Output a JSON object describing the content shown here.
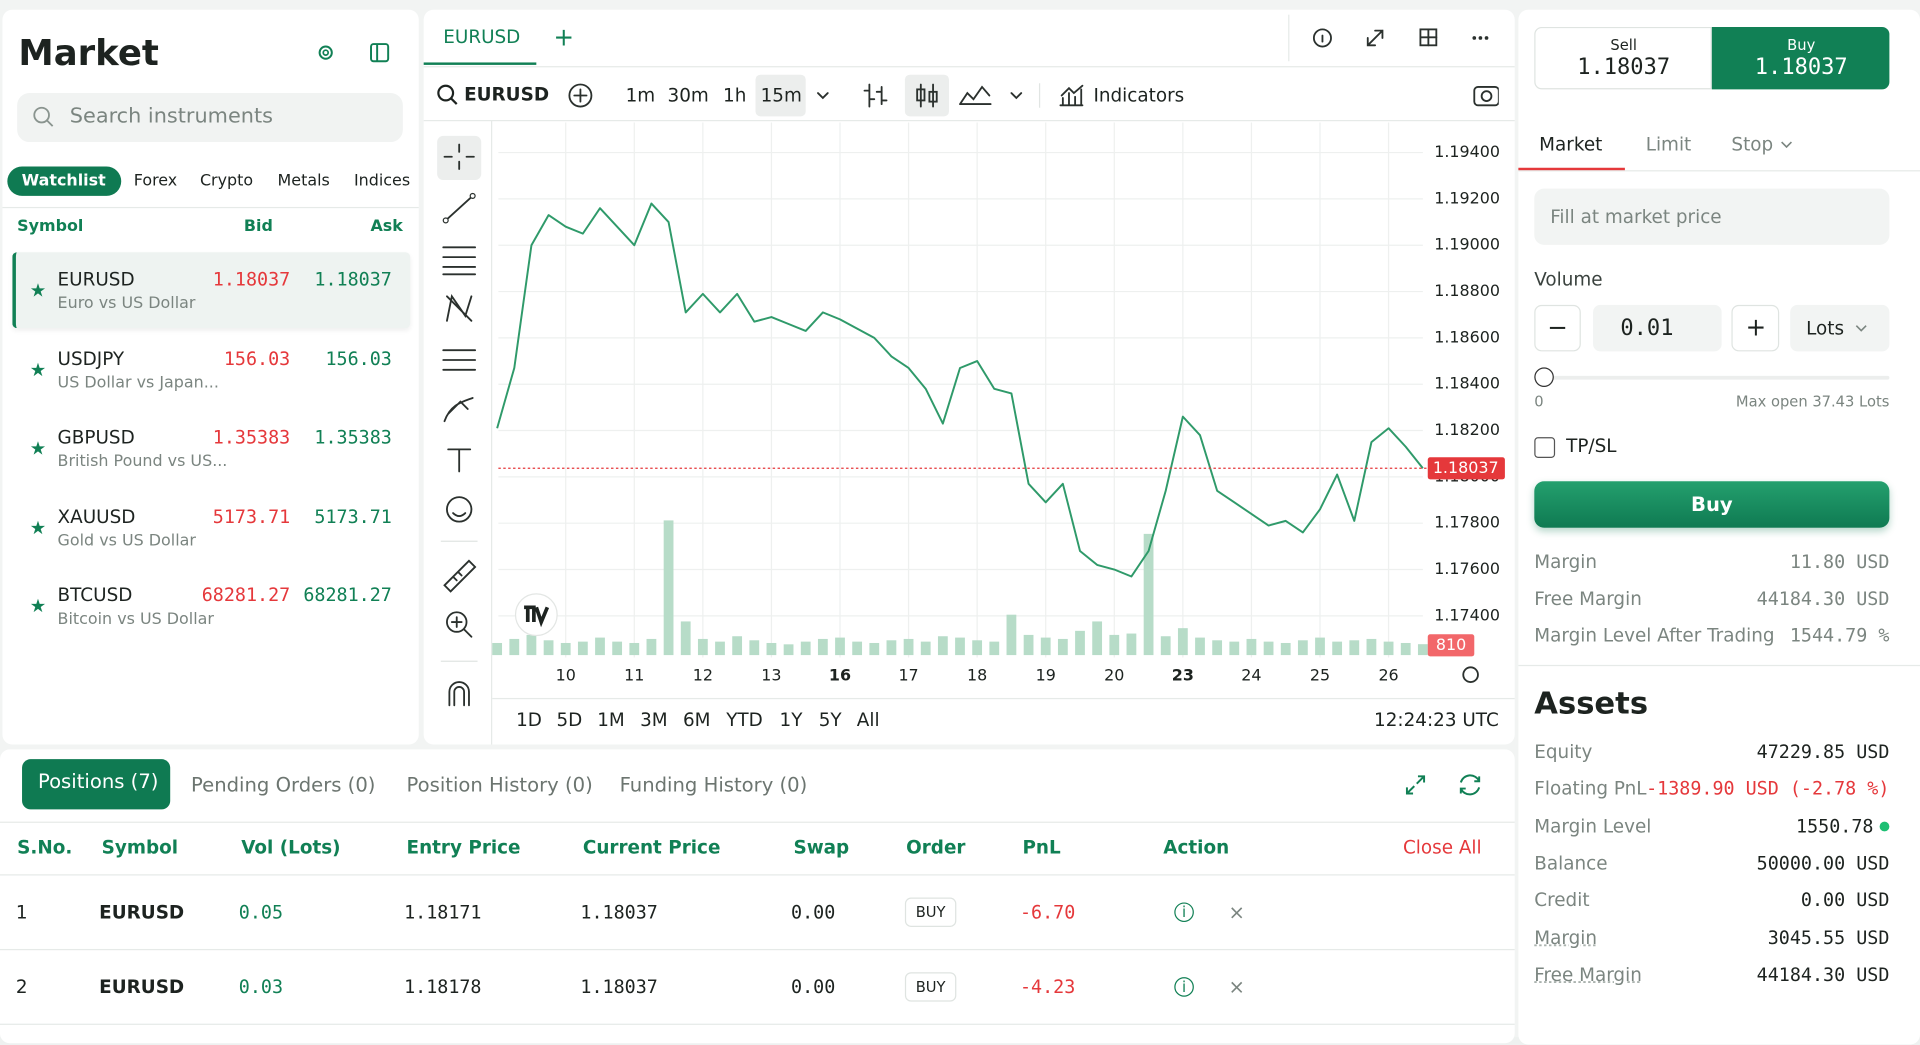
{
  "sidebar": {
    "title": "Market",
    "search_placeholder": "Search instruments",
    "tabs": [
      "Watchlist",
      "Forex",
      "Crypto",
      "Metals",
      "Indices"
    ],
    "columns": [
      "Symbol",
      "Bid",
      "Ask"
    ],
    "instruments": [
      {
        "symbol": "EURUSD",
        "description": "Euro vs US Dollar",
        "bid": "1.18037",
        "ask": "1.18037"
      },
      {
        "symbol": "USDJPY",
        "description": "US Dollar vs Japan...",
        "bid": "156.03",
        "ask": "156.03"
      },
      {
        "symbol": "GBPUSD",
        "description": "British Pound vs US...",
        "bid": "1.35383",
        "ask": "1.35383"
      },
      {
        "symbol": "XAUUSD",
        "description": "Gold vs US Dollar",
        "bid": "5173.71",
        "ask": "5173.71"
      },
      {
        "symbol": "BTCUSD",
        "description": "Bitcoin vs US Dollar",
        "bid": "68281.27",
        "ask": "68281.27"
      }
    ]
  },
  "chart_panel": {
    "tab": "EURUSD",
    "symbol": "EURUSD",
    "intervals": [
      "1m",
      "30m",
      "1h",
      "15m"
    ],
    "indicators": "Indicators",
    "ranges": [
      "1D",
      "5D",
      "1M",
      "3M",
      "6M",
      "YTD",
      "1Y",
      "5Y",
      "All"
    ],
    "time": "12:24:23 UTC"
  },
  "chart_data": {
    "type": "line",
    "color": "#2f9a6a",
    "volume_color": "#b7dcc8",
    "last_color": "#e5383b",
    "grid": true,
    "categories": [
      null,
      null,
      null,
      null,
      "10",
      null,
      null,
      null,
      "11",
      null,
      null,
      null,
      "12",
      null,
      null,
      null,
      "13",
      null,
      null,
      null,
      "16",
      null,
      null,
      null,
      "17",
      null,
      null,
      null,
      "18",
      null,
      null,
      null,
      "19",
      null,
      null,
      null,
      "20",
      null,
      null,
      null,
      "23",
      null,
      null,
      null,
      "24",
      null,
      null,
      null,
      "25",
      null,
      null,
      null,
      "26",
      null,
      null
    ],
    "values": [
      1.1821,
      1.1847,
      1.19,
      1.1913,
      1.1908,
      1.1905,
      1.1916,
      1.1908,
      1.19,
      1.1918,
      1.191,
      1.1871,
      1.1879,
      1.1871,
      1.1879,
      1.1867,
      1.1869,
      1.1866,
      1.1863,
      1.1871,
      1.1868,
      1.1864,
      1.186,
      1.1852,
      1.1847,
      1.1838,
      1.1823,
      1.1847,
      1.185,
      1.1838,
      1.1836,
      1.1797,
      1.1789,
      1.1797,
      1.1768,
      1.1762,
      1.176,
      1.1757,
      1.1768,
      1.1794,
      1.1826,
      1.1818,
      1.1794,
      1.1789,
      1.1784,
      1.1779,
      1.1781,
      1.1776,
      1.1786,
      1.1801,
      1.1781,
      1.1815,
      1.1821,
      1.1813,
      1.18037
    ],
    "volumes": [
      900,
      1200,
      1500,
      1100,
      900,
      1000,
      1300,
      1000,
      900,
      1200,
      10000,
      2500,
      1200,
      1000,
      1400,
      1100,
      900,
      800,
      1000,
      1200,
      1300,
      1000,
      900,
      1100,
      1200,
      1000,
      1400,
      1300,
      1100,
      1000,
      3000,
      1500,
      1300,
      1200,
      1800,
      2500,
      1500,
      1600,
      9000,
      1400,
      2000,
      1300,
      1100,
      1000,
      1200,
      1000,
      900,
      1100,
      1300,
      1000,
      1100,
      1200,
      1000,
      900,
      810
    ],
    "ylim": [
      1.1722,
      1.1953
    ],
    "yticks": [
      {
        "value": 1.194,
        "label": "1.19400"
      },
      {
        "value": 1.192,
        "label": "1.19200"
      },
      {
        "value": 1.19,
        "label": "1.19000"
      },
      {
        "value": 1.188,
        "label": "1.18800"
      },
      {
        "value": 1.186,
        "label": "1.18600"
      },
      {
        "value": 1.184,
        "label": "1.18400"
      },
      {
        "value": 1.182,
        "label": "1.18200"
      },
      {
        "value": 1.18,
        "label": "1.18000"
      },
      {
        "value": 1.178,
        "label": "1.17800"
      },
      {
        "value": 1.176,
        "label": "1.17600"
      },
      {
        "value": 1.174,
        "label": "1.17400"
      }
    ]
  },
  "order_panel": {
    "sell_label": "Sell",
    "sell_price": "1.18037",
    "buy_label": "Buy",
    "buy_price": "1.18037",
    "tabs": [
      "Market",
      "Limit",
      "Stop"
    ],
    "fill_note": "Fill at market price",
    "volume_label": "Volume",
    "volume_value": "0.01",
    "unit": "Lots",
    "slider_min": "0",
    "slider_max": "Max open 37.43 Lots",
    "tpsl": "TP/SL",
    "button": "Buy",
    "summary": [
      {
        "label": "Margin",
        "value": "11.80 USD"
      },
      {
        "label": "Free Margin",
        "value": "44184.30 USD"
      },
      {
        "label": "Margin Level After Trading",
        "value": "1544.79 %"
      }
    ]
  },
  "assets": {
    "title": "Assets",
    "rows": [
      {
        "label": "Equity",
        "value": "47229.85 USD"
      },
      {
        "label": "Floating PnL",
        "value": "-1389.90 USD (-2.78 %)"
      },
      {
        "label": "Margin Level",
        "value": "1550.78"
      },
      {
        "label": "Balance",
        "value": "50000.00 USD"
      },
      {
        "label": "Credit",
        "value": "0.00 USD"
      },
      {
        "label": "Margin",
        "value": "3045.55 USD"
      },
      {
        "label": "Free Margin",
        "value": "44184.30 USD"
      }
    ]
  },
  "positions": {
    "tabs": [
      "Positions (7)",
      "Pending Orders (0)",
      "Position History (0)",
      "Funding History (0)"
    ],
    "table": {
      "columns": [
        "S.No.",
        "Symbol",
        "Vol (Lots)",
        "Entry Price",
        "Current Price",
        "Swap",
        "Order",
        "PnL",
        "Action"
      ],
      "close_all": "Close All",
      "rows": [
        [
          "1",
          "EURUSD",
          "0.05",
          "1.18171",
          "1.18037",
          "0.00",
          "BUY",
          "-6.70"
        ],
        [
          "2",
          "EURUSD",
          "0.03",
          "1.18178",
          "1.18037",
          "0.00",
          "BUY",
          "-4.23"
        ]
      ]
    }
  }
}
